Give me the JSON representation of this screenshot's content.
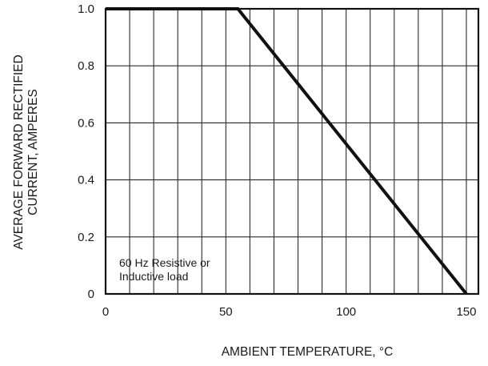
{
  "chart_data": {
    "type": "line",
    "title": "",
    "xlabel": "AMBIENT TEMPERATURE, °C",
    "ylabel_lines": [
      "AVERAGE FORWARD RECTIFIED",
      "CURRENT, AMPERES"
    ],
    "xlim": [
      0,
      155
    ],
    "ylim": [
      0,
      1.0
    ],
    "x_ticks": [
      0,
      50,
      100,
      150
    ],
    "x_tick_labels": [
      "0",
      "50",
      "100",
      "150"
    ],
    "y_ticks": [
      0,
      0.2,
      0.4,
      0.6,
      0.8,
      1.0
    ],
    "y_tick_labels": [
      "0",
      "0.2",
      "0.4",
      "0.6",
      "0.8",
      "1.0"
    ],
    "grid": true,
    "grid_x_step": 10,
    "grid_y_step": 0.2,
    "annotation_lines": [
      "60 Hz Resistive or",
      "Inductive load"
    ],
    "series": [
      {
        "x": [
          0,
          55,
          150
        ],
        "y": [
          1.0,
          1.0,
          0.0
        ],
        "color": "#111111"
      }
    ]
  }
}
